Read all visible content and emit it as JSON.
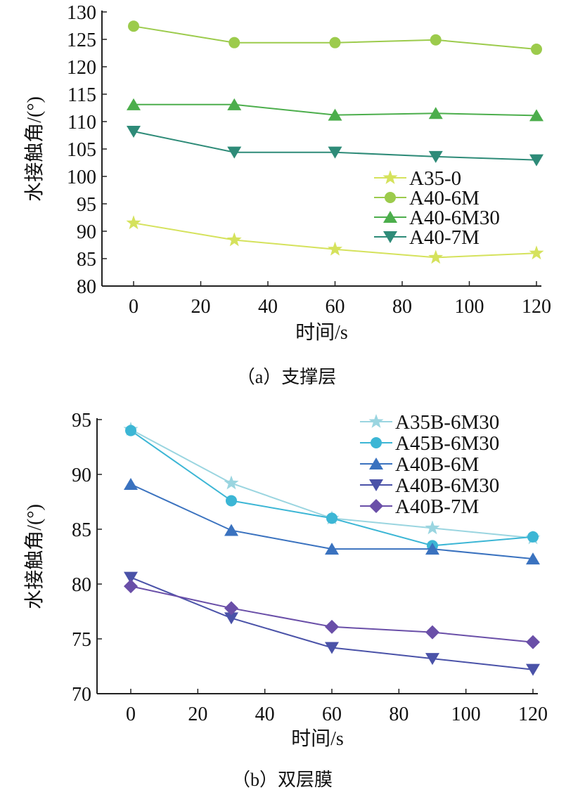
{
  "chart_data": [
    {
      "type": "line",
      "title": "",
      "caption": "（a）支撑层",
      "xlabel": "时间/s",
      "ylabel": "水接触角/(°)",
      "xlim": [
        -10,
        121
      ],
      "ylim": [
        80,
        130
      ],
      "xticks": [
        0,
        20,
        40,
        60,
        80,
        100,
        120
      ],
      "yticks": [
        80,
        85,
        90,
        95,
        100,
        105,
        110,
        115,
        120,
        125,
        130
      ],
      "grid": false,
      "legend_position": "center-right",
      "x": [
        0,
        30,
        60,
        90,
        120
      ],
      "series": [
        {
          "name": "A35-0",
          "marker": "star",
          "color": "#d5e25c",
          "values": [
            91.5,
            88.4,
            86.7,
            85.2,
            86.0
          ]
        },
        {
          "name": "A40-6M",
          "marker": "circle",
          "color": "#9ccb4c",
          "values": [
            127.4,
            124.4,
            124.4,
            124.9,
            123.2
          ]
        },
        {
          "name": "A40-6M30",
          "marker": "triangle-up",
          "color": "#4cae4c",
          "values": [
            113.1,
            113.1,
            111.2,
            111.5,
            111.1
          ]
        },
        {
          "name": "A40-7M",
          "marker": "triangle-down",
          "color": "#2e8b78",
          "values": [
            108.2,
            104.4,
            104.4,
            103.6,
            103.0
          ]
        }
      ]
    },
    {
      "type": "line",
      "title": "",
      "caption": "（b）双层膜",
      "xlabel": "时间/s",
      "ylabel": "水接触角/(°)",
      "xlim": [
        -10,
        121
      ],
      "ylim": [
        70,
        95
      ],
      "xticks": [
        0,
        20,
        40,
        60,
        80,
        100,
        120
      ],
      "yticks": [
        70,
        75,
        80,
        85,
        90,
        95
      ],
      "grid": false,
      "legend_position": "top-right",
      "x": [
        0,
        30,
        60,
        90,
        120
      ],
      "series": [
        {
          "name": "A35B-6M30",
          "marker": "star",
          "color": "#9ad5e0",
          "values": [
            94.1,
            89.2,
            86.0,
            85.1,
            84.2
          ]
        },
        {
          "name": "A45B-6M30",
          "marker": "circle",
          "color": "#3cb6d5",
          "values": [
            94.0,
            87.6,
            86.0,
            83.5,
            84.3
          ]
        },
        {
          "name": "A40B-6M",
          "marker": "triangle-up",
          "color": "#3a72bf",
          "values": [
            89.1,
            84.9,
            83.2,
            83.2,
            82.3
          ]
        },
        {
          "name": "A40B-6M30",
          "marker": "triangle-down",
          "color": "#4a52a8",
          "values": [
            80.6,
            76.9,
            74.2,
            73.2,
            72.2
          ]
        },
        {
          "name": "A40B-7M",
          "marker": "diamond",
          "color": "#6a4fa8",
          "values": [
            79.8,
            77.8,
            76.1,
            75.6,
            74.7
          ]
        }
      ]
    }
  ]
}
